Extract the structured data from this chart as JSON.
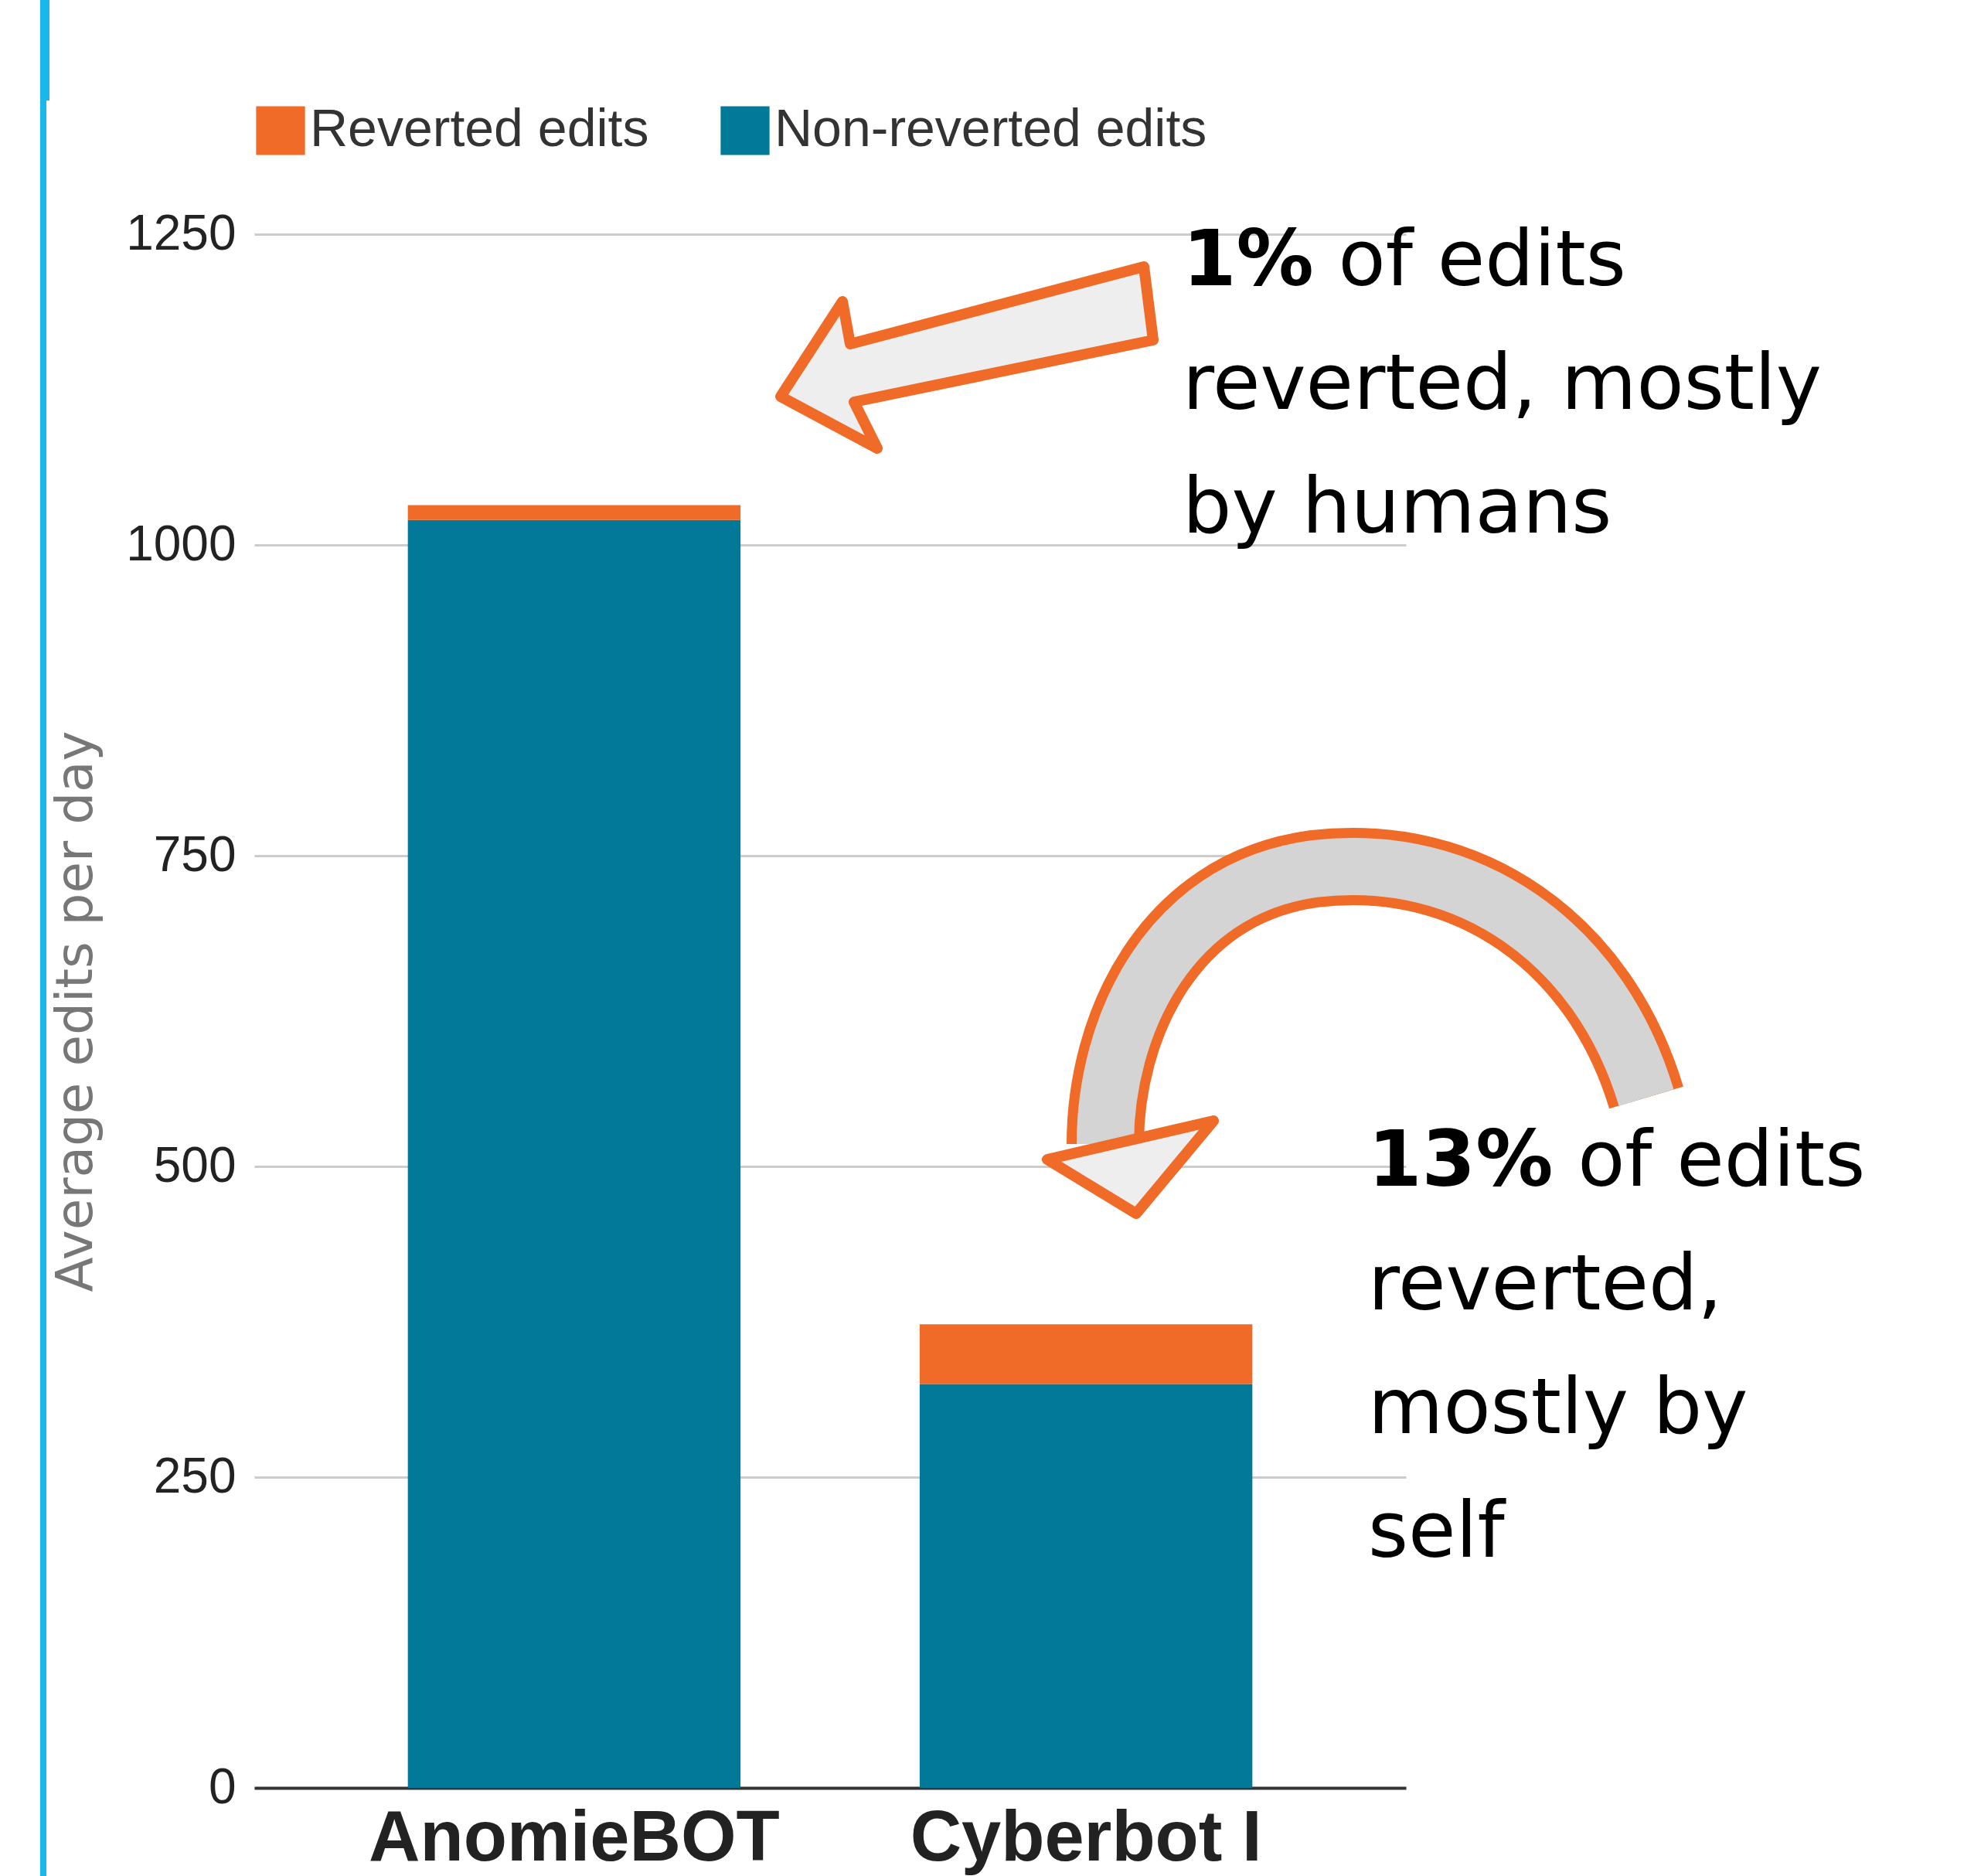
{
  "chart_data": {
    "type": "bar",
    "stacked": true,
    "ylabel": "Average edits per day",
    "categories": [
      "AnomieBOT",
      "Cyberbot I"
    ],
    "series": [
      {
        "name": "Non-reverted edits",
        "color": "#03799a",
        "values": [
          1020,
          325
        ]
      },
      {
        "name": "Reverted edits",
        "color": "#f06a28",
        "values": [
          12,
          48
        ]
      }
    ],
    "ylim": [
      0,
      1250
    ],
    "yticks": [
      0,
      250,
      500,
      750,
      1000,
      1250
    ],
    "grid": "y",
    "legend": "top left",
    "annotations": [
      "1% of edits reverted, mostly by humans",
      "13% of edits reverted, mostly by self"
    ]
  }
}
